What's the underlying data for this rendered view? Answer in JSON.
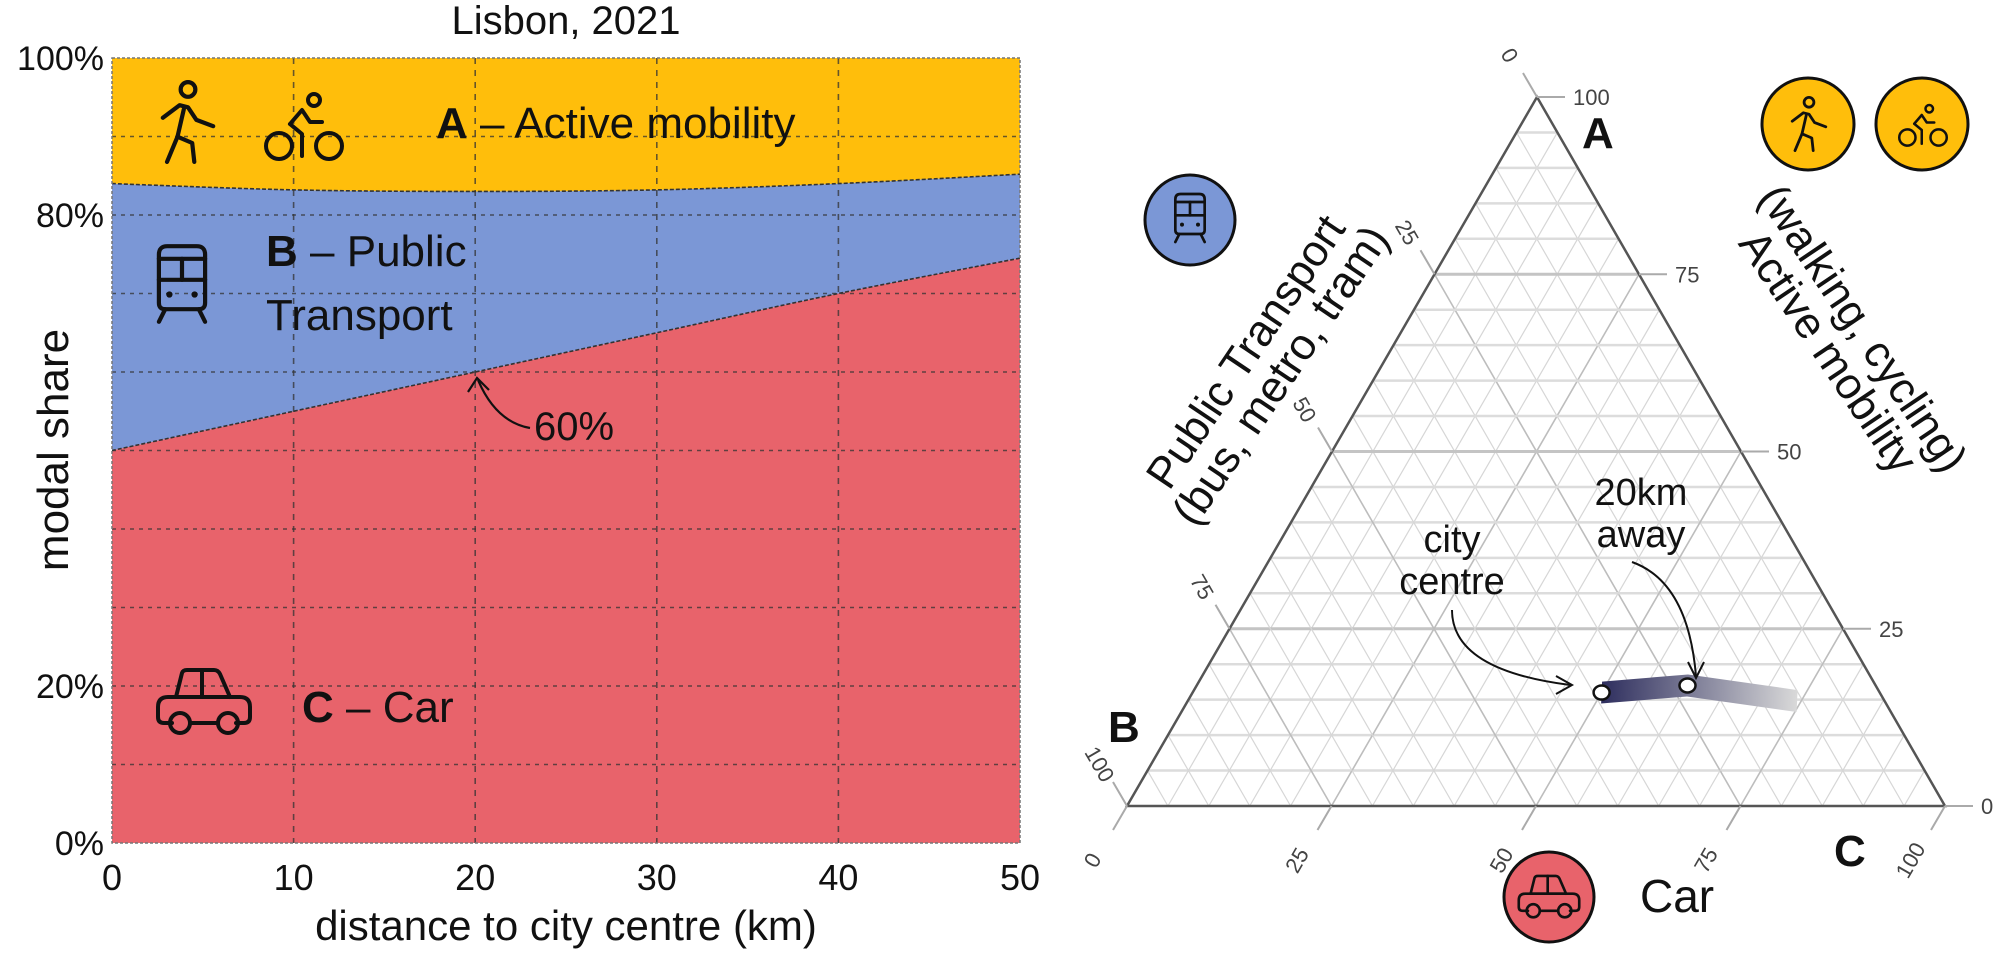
{
  "chart_data": [
    {
      "type": "area",
      "title": "Lisbon, 2021",
      "xlabel": "distance to city centre (km)",
      "ylabel": "modal share",
      "xlim": [
        0,
        50
      ],
      "ylim": [
        0,
        100
      ],
      "x_ticks": [
        "0",
        "10",
        "20",
        "30",
        "40",
        "50"
      ],
      "y_ticks": [
        "0%",
        "20%",
        "80%",
        "100%"
      ],
      "y_ticks_values": [
        0,
        20,
        80,
        100
      ],
      "grid": true,
      "stacked": true,
      "x": [
        0,
        10,
        20,
        30,
        40,
        50
      ],
      "series": [
        {
          "name": "C – Car",
          "letter": "C",
          "label": "Car",
          "color": "#E8636B",
          "values": [
            50,
            55,
            60,
            65,
            70,
            74.5
          ]
        },
        {
          "name": "B – Public Transport",
          "letter": "B",
          "label_line1": "Public",
          "label_line2": "Transport",
          "color": "#7B97D6",
          "values": [
            34,
            28.2,
            23,
            18.2,
            14,
            10.7
          ]
        },
        {
          "name": "A – Active mobility",
          "letter": "A",
          "label": "Active mobility",
          "color": "#FFBE0B",
          "values": [
            16,
            16.8,
            17,
            16.8,
            16,
            14.8
          ]
        }
      ],
      "annotation": {
        "text": "60%",
        "x": 20,
        "y": 60
      },
      "dash": "–"
    },
    {
      "type": "scatter",
      "subtype": "ternary",
      "axes": {
        "A": {
          "vertex": "A",
          "title_line1": "Active mobility",
          "title_line2": "(walking, cycling)",
          "ticks": [
            "100",
            "75",
            "50",
            "25",
            "0"
          ]
        },
        "B": {
          "vertex": "B",
          "title_line1": "Public Transport",
          "title_line2": "(bus, metro, tram)",
          "ticks": [
            "0",
            "25",
            "50",
            "75",
            "100"
          ]
        },
        "C": {
          "vertex": "C",
          "title": "Car",
          "ticks": [
            "0",
            "25",
            "50",
            "75",
            "100"
          ]
        }
      },
      "grid_step": 5,
      "path": {
        "from_color": "#2E2E5E",
        "to_color": "#D9D9D9",
        "points": [
          {
            "A": 16,
            "B": 34,
            "C": 50
          },
          {
            "A": 17,
            "B": 23,
            "C": 60
          },
          {
            "A": 14.8,
            "B": 10.7,
            "C": 74.5
          }
        ]
      },
      "points": [
        {
          "label_line1": "city",
          "label_line2": "centre",
          "A": 16,
          "B": 34,
          "C": 50
        },
        {
          "label_line1": "20km",
          "label_line2": "away",
          "A": 17,
          "B": 23,
          "C": 60
        }
      ]
    }
  ],
  "icons": {
    "walk": "walking-person-icon",
    "bike": "cyclist-icon",
    "train": "train-icon",
    "car": "car-icon"
  }
}
